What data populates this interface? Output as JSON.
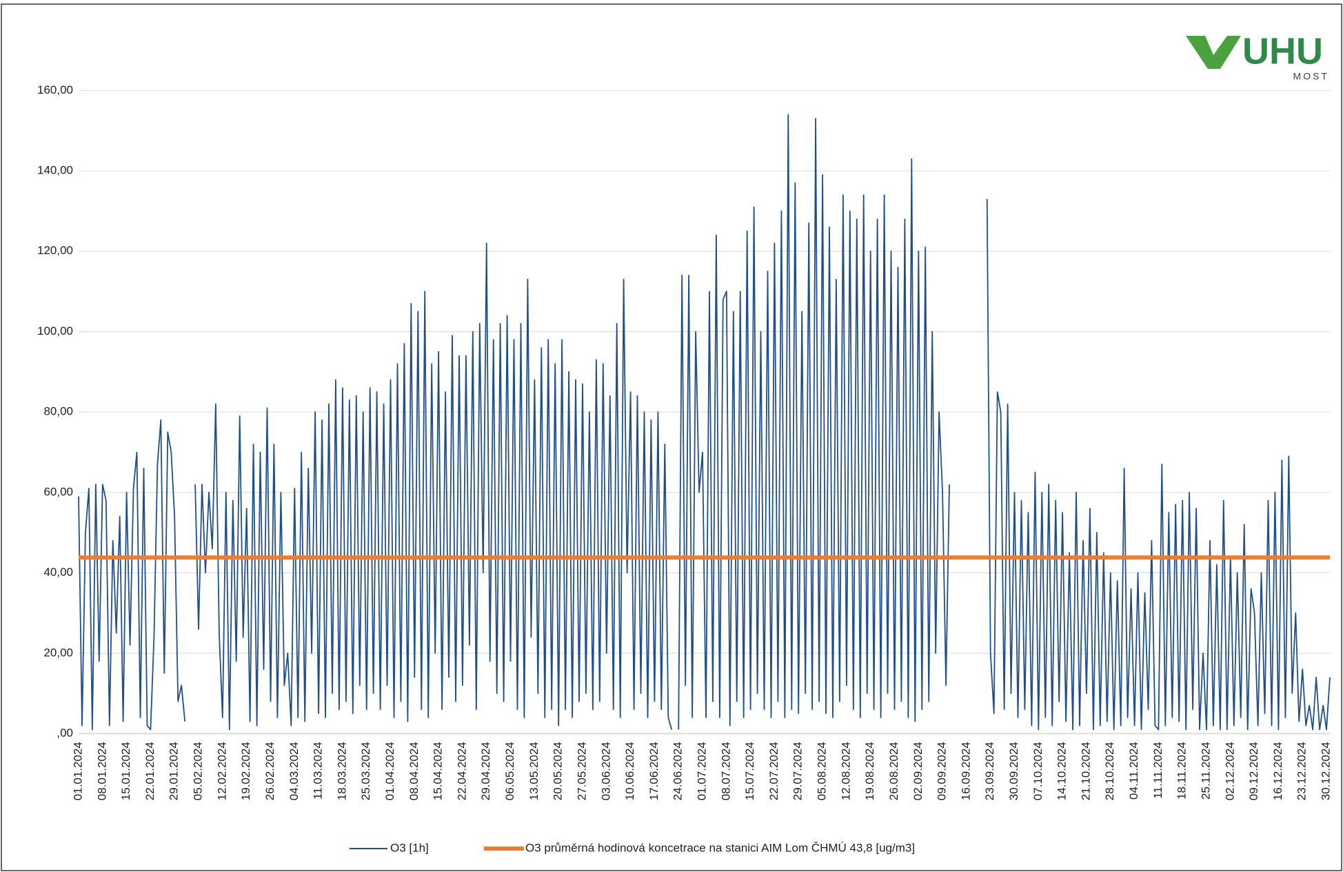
{
  "chart_data": {
    "type": "line",
    "categories": [
      "01.01.2024",
      null,
      null,
      null,
      null,
      null,
      null,
      "08.01.2024",
      null,
      null,
      null,
      null,
      null,
      null,
      "15.01.2024",
      null,
      null,
      null,
      null,
      null,
      null,
      "22.01.2024",
      null,
      null,
      null,
      null,
      null,
      null,
      "29.01.2024",
      null,
      null,
      null,
      null,
      null,
      null,
      "05.02.2024",
      null,
      null,
      null,
      null,
      null,
      null,
      "12.02.2024",
      null,
      null,
      null,
      null,
      null,
      null,
      "19.02.2024",
      null,
      null,
      null,
      null,
      null,
      null,
      "26.02.2024",
      null,
      null,
      null,
      null,
      null,
      null,
      "04.03.2024",
      null,
      null,
      null,
      null,
      null,
      null,
      "11.03.2024",
      null,
      null,
      null,
      null,
      null,
      null,
      "18.03.2024",
      null,
      null,
      null,
      null,
      null,
      null,
      "25.03.2024",
      null,
      null,
      null,
      null,
      null,
      null,
      "01.04.2024",
      null,
      null,
      null,
      null,
      null,
      null,
      "08.04.2024",
      null,
      null,
      null,
      null,
      null,
      null,
      "15.04.2024",
      null,
      null,
      null,
      null,
      null,
      null,
      "22.04.2024",
      null,
      null,
      null,
      null,
      null,
      null,
      "29.04.2024",
      null,
      null,
      null,
      null,
      null,
      null,
      "06.05.2024",
      null,
      null,
      null,
      null,
      null,
      null,
      "13.05.2024",
      null,
      null,
      null,
      null,
      null,
      null,
      "20.05.2024",
      null,
      null,
      null,
      null,
      null,
      null,
      "27.05.2024",
      null,
      null,
      null,
      null,
      null,
      null,
      "03.06.2024",
      null,
      null,
      null,
      null,
      null,
      null,
      "10.06.2024",
      null,
      null,
      null,
      null,
      null,
      null,
      "17.06.2024",
      null,
      null,
      null,
      null,
      null,
      null,
      "24.06.2024",
      null,
      null,
      null,
      null,
      null,
      null,
      "01.07.2024",
      null,
      null,
      null,
      null,
      null,
      null,
      "08.07.2024",
      null,
      null,
      null,
      null,
      null,
      null,
      "15.07.2024",
      null,
      null,
      null,
      null,
      null,
      null,
      "22.07.2024",
      null,
      null,
      null,
      null,
      null,
      null,
      "29.07.2024",
      null,
      null,
      null,
      null,
      null,
      null,
      "05.08.2024",
      null,
      null,
      null,
      null,
      null,
      null,
      "12.08.2024",
      null,
      null,
      null,
      null,
      null,
      null,
      "19.08.2024",
      null,
      null,
      null,
      null,
      null,
      null,
      "26.08.2024",
      null,
      null,
      null,
      null,
      null,
      null,
      "02.09.2024",
      null,
      null,
      null,
      null,
      null,
      null,
      "09.09.2024",
      null,
      null,
      null,
      null,
      null,
      null,
      "16.09.2024",
      null,
      null,
      null,
      null,
      null,
      null,
      "23.09.2024",
      null,
      null,
      null,
      null,
      null,
      null,
      "30.09.2024",
      null,
      null,
      null,
      null,
      null,
      null,
      "07.10.2024",
      null,
      null,
      null,
      null,
      null,
      null,
      "14.10.2024",
      null,
      null,
      null,
      null,
      null,
      null,
      "21.10.2024",
      null,
      null,
      null,
      null,
      null,
      null,
      "28.10.2024",
      null,
      null,
      null,
      null,
      null,
      null,
      "04.11.2024",
      null,
      null,
      null,
      null,
      null,
      null,
      "11.11.2024",
      null,
      null,
      null,
      null,
      null,
      null,
      "18.11.2024",
      null,
      null,
      null,
      null,
      null,
      null,
      "25.11.2024",
      null,
      null,
      null,
      null,
      null,
      null,
      "02.12.2024",
      null,
      null,
      null,
      null,
      null,
      null,
      "09.12.2024",
      null,
      null,
      null,
      null,
      null,
      null,
      "16.12.2024",
      null,
      null,
      null,
      null,
      null,
      null,
      "23.12.2024",
      null,
      null,
      null,
      null,
      null,
      null,
      "30.12.2024",
      null
    ],
    "series": [
      {
        "name": "O3 [1h]",
        "color": "#1f4e89",
        "values": [
          59,
          2,
          50,
          61,
          1,
          62,
          18,
          62,
          58,
          2,
          48,
          25,
          54,
          3,
          60,
          22,
          61,
          70,
          4,
          66,
          2,
          1,
          24,
          67,
          78,
          15,
          75,
          70,
          54,
          8,
          12,
          3,
          null,
          null,
          62,
          26,
          62,
          40,
          60,
          46,
          82,
          25,
          4,
          60,
          1,
          58,
          18,
          79,
          24,
          56,
          3,
          72,
          2,
          70,
          16,
          81,
          8,
          72,
          4,
          60,
          12,
          20,
          2,
          61,
          4,
          70,
          3,
          66,
          20,
          80,
          5,
          78,
          4,
          82,
          10,
          88,
          6,
          86,
          8,
          83,
          5,
          84,
          12,
          80,
          6,
          86,
          10,
          85,
          6,
          82,
          12,
          88,
          4,
          92,
          8,
          97,
          3,
          107,
          14,
          105,
          6,
          110,
          4,
          92,
          20,
          95,
          6,
          85,
          14,
          99,
          8,
          94,
          12,
          94,
          22,
          100,
          6,
          102,
          40,
          122,
          18,
          98,
          10,
          102,
          8,
          104,
          18,
          98,
          6,
          102,
          4,
          113,
          24,
          88,
          10,
          96,
          4,
          98,
          6,
          92,
          2,
          98,
          6,
          90,
          4,
          88,
          8,
          87,
          10,
          80,
          6,
          93,
          8,
          92,
          20,
          84,
          6,
          102,
          4,
          113,
          40,
          85,
          6,
          84,
          10,
          80,
          4,
          78,
          8,
          80,
          6,
          72,
          4,
          1,
          null,
          1,
          114,
          12,
          114,
          4,
          100,
          60,
          70,
          4,
          110,
          8,
          124,
          4,
          108,
          110,
          2,
          105,
          8,
          110,
          4,
          125,
          6,
          131,
          10,
          100,
          6,
          115,
          4,
          122,
          8,
          130,
          4,
          154,
          6,
          137,
          5,
          105,
          10,
          127,
          6,
          153,
          8,
          139,
          5,
          126,
          4,
          113,
          8,
          134,
          12,
          130,
          6,
          128,
          4,
          134,
          10,
          120,
          6,
          128,
          4,
          134,
          10,
          120,
          6,
          116,
          8,
          128,
          4,
          143,
          3,
          120,
          6,
          121,
          8,
          100,
          20,
          80,
          60,
          12,
          62,
          null,
          null,
          null,
          null,
          null,
          null,
          null,
          null,
          null,
          null,
          133,
          20,
          5,
          85,
          80,
          6,
          82,
          10,
          60,
          4,
          58,
          6,
          55,
          2,
          65,
          1,
          60,
          4,
          62,
          2,
          58,
          8,
          55,
          3,
          45,
          1,
          60,
          2,
          48,
          10,
          56,
          1,
          50,
          2,
          45,
          3,
          40,
          1,
          38,
          2,
          66,
          4,
          36,
          2,
          40,
          1,
          35,
          6,
          48,
          2,
          1,
          67,
          2,
          55,
          4,
          57,
          3,
          58,
          1,
          60,
          6,
          56,
          1,
          20,
          1,
          48,
          2,
          42,
          1,
          58,
          1,
          44,
          2,
          40,
          4,
          52,
          1,
          36,
          30,
          2,
          40,
          5,
          58,
          2,
          60,
          1,
          68,
          4,
          69,
          10,
          30,
          3,
          16,
          2,
          7,
          1,
          14,
          1,
          7,
          1,
          14
        ]
      }
    ],
    "hline": {
      "name": "O3 průměrná hodinová koncetrace na stanici AIM Lom ČHMÚ 43,8 [ug/m3]",
      "value": 43.8,
      "color": "#ed7d31"
    },
    "ylim": [
      0,
      170
    ],
    "yticks": [
      {
        "value": 0,
        "label": ",00"
      },
      {
        "value": 20,
        "label": "20,00"
      },
      {
        "value": 40,
        "label": "40,00"
      },
      {
        "value": 60,
        "label": "60,00"
      },
      {
        "value": 80,
        "label": "80,00"
      },
      {
        "value": 100,
        "label": "100,00"
      },
      {
        "value": 120,
        "label": "120,00"
      },
      {
        "value": 140,
        "label": "140,00"
      },
      {
        "value": 160,
        "label": "160,00"
      }
    ],
    "grid": true
  },
  "logo": {
    "text": "UHU",
    "subtext": "MOST"
  }
}
